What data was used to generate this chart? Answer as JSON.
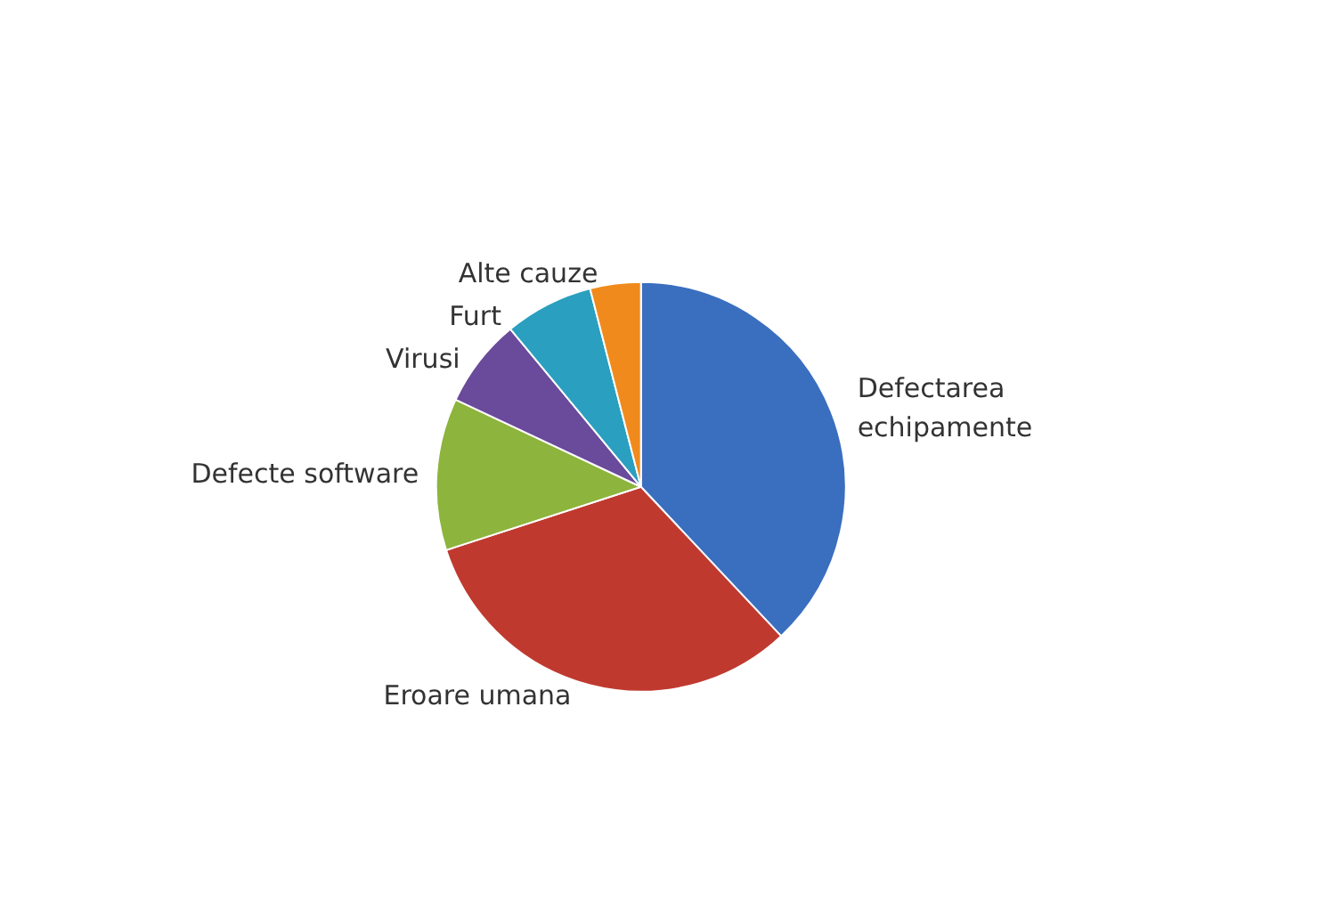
{
  "chart_data": {
    "type": "pie",
    "categories": [
      "Defectarea echipamente",
      "Eroare umana",
      "Defecte software",
      "Virusi",
      "Furt",
      "Alte cauze"
    ],
    "values": [
      38,
      32,
      12,
      7,
      7,
      4
    ],
    "colors": [
      "#3a6fbf",
      "#c0392f",
      "#8db43c",
      "#6a4a9a",
      "#2a9fbf",
      "#f08a1c"
    ],
    "legend": false
  }
}
